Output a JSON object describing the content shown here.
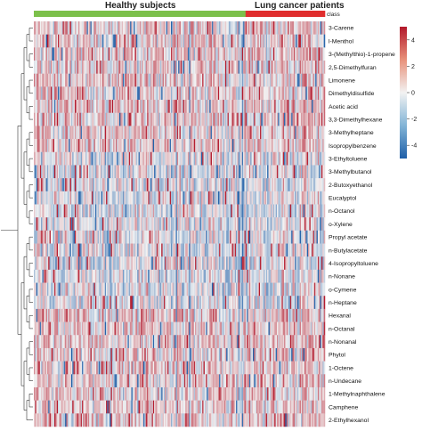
{
  "chart_data": {
    "type": "heatmap",
    "groups": [
      {
        "name": "Healthy subjects",
        "color": "#7cc04b",
        "count": 176
      },
      {
        "name": "Lung cancer patients",
        "color": "#e02d2d",
        "count": 66
      }
    ],
    "class_label": "class",
    "rows": [
      "3-Carene",
      "l-Menthol",
      "3-(Methylthio)-1-propene",
      "2,5-Dimethylfuran",
      "Limonene",
      "Dimethyldisulfide",
      "Acetic acid",
      "3,3-Dimethylhexane",
      "3-Methylheptane",
      "Isopropylbenzene",
      "3-Ethyltoluene",
      "3-Methylbutanol",
      "2-Butoxyethanol",
      "Eucalyptol",
      "n-Octanol",
      "o-Xylene",
      "Propyl acetate",
      "n-Butylacetate",
      "4-Isopropyltoluene",
      "n-Nonane",
      "o-Cymene",
      "n-Heptane",
      "Hexanal",
      "n-Octanal",
      "n-Nonanal",
      "Phytol",
      "1-Octene",
      "n-Undecane",
      "1-Methylnaphthalene",
      "Camphene",
      "2-Ethylhexanol"
    ],
    "colorbar": {
      "ticks": [
        4,
        2,
        0,
        -2,
        -4
      ],
      "range": [
        -5,
        5
      ],
      "colors": {
        "low": "#1f5fa8",
        "mid": "#f2f2f2",
        "high": "#b2182b"
      }
    },
    "dendrogram": "row clustering tree on left"
  }
}
